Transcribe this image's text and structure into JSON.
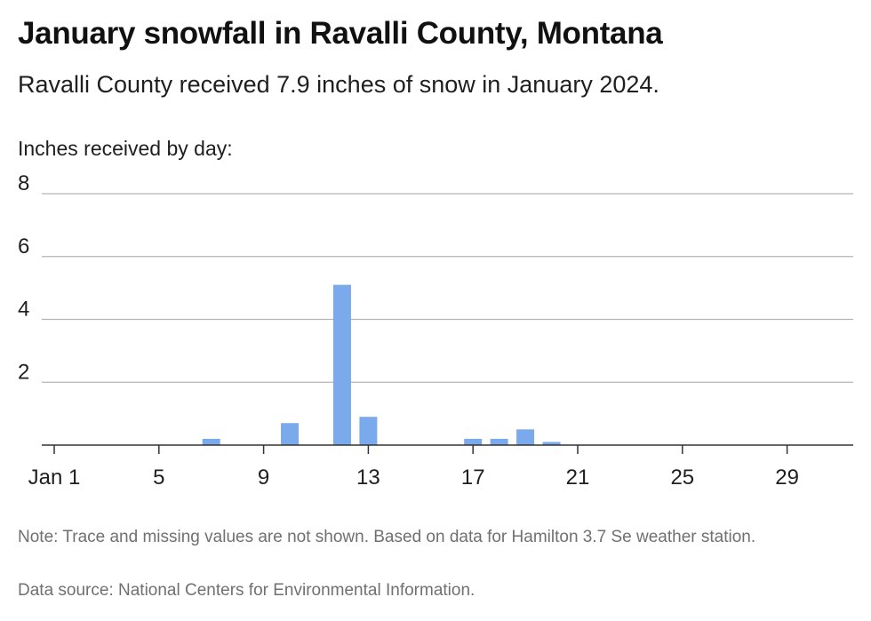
{
  "header": {
    "title": "January snowfall in Ravalli County, Montana",
    "subtitle": "Ravalli County received 7.9 inches of snow in January 2024."
  },
  "footer": {
    "note": "Note: Trace and missing values are not shown. Based on data for Hamilton 3.7 Se weather station.",
    "source": "Data source: National Centers for Environmental Information."
  },
  "colors": {
    "bar": "#7aaaeb",
    "grid": "#b5b5b5",
    "axis": "#333333",
    "text": "#1f1f1f"
  },
  "chart_data": {
    "type": "bar",
    "ylabel": "Inches received by day:",
    "ylim": [
      0,
      8
    ],
    "yticks": [
      "8",
      "6",
      "4",
      "2"
    ],
    "ytick_values": [
      8,
      6,
      4,
      2
    ],
    "xlim": [
      1,
      31
    ],
    "xticks": [
      {
        "day": 1,
        "label": "Jan 1"
      },
      {
        "day": 5,
        "label": "5"
      },
      {
        "day": 9,
        "label": "9"
      },
      {
        "day": 13,
        "label": "13"
      },
      {
        "day": 17,
        "label": "17"
      },
      {
        "day": 21,
        "label": "21"
      },
      {
        "day": 25,
        "label": "25"
      },
      {
        "day": 29,
        "label": "29"
      }
    ],
    "grid": true,
    "series": [
      {
        "points": [
          {
            "day": 7,
            "value": 0.2
          },
          {
            "day": 10,
            "value": 0.7
          },
          {
            "day": 12,
            "value": 5.1
          },
          {
            "day": 13,
            "value": 0.9
          },
          {
            "day": 17,
            "value": 0.2
          },
          {
            "day": 18,
            "value": 0.2
          },
          {
            "day": 19,
            "value": 0.5
          },
          {
            "day": 20,
            "value": 0.1
          }
        ]
      }
    ]
  }
}
